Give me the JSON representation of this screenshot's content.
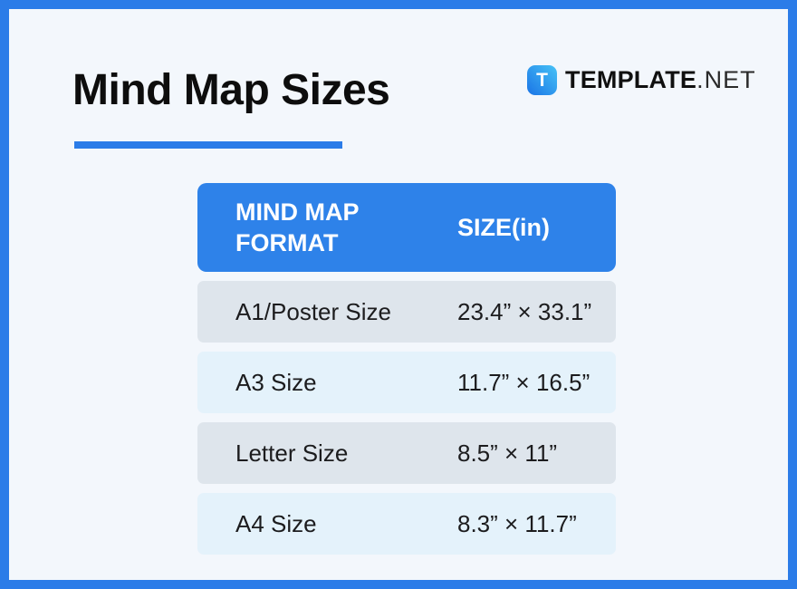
{
  "page": {
    "title": "Mind Map Sizes"
  },
  "logo": {
    "icon_letter": "T",
    "brand_bold": "TEMPLATE",
    "brand_light": ".NET"
  },
  "table": {
    "headers": {
      "format": "MIND MAP FORMAT",
      "size": "SIZE(in)"
    },
    "rows": [
      {
        "format": "A1/Poster Size",
        "size": "23.4” × 33.1”"
      },
      {
        "format": "A3 Size",
        "size": "11.7” × 16.5”"
      },
      {
        "format": "Letter Size",
        "size": "8.5” × 11”"
      },
      {
        "format": "A4 Size",
        "size": "8.3” × 11.7”"
      }
    ]
  },
  "colors": {
    "accent_blue": "#2b7ce8",
    "header_blue": "#2e82e9",
    "row_odd": "#dee5ec",
    "row_even": "#e4f2fb",
    "background": "#f3f7fc",
    "logo_gradient_start": "#47c2f6",
    "logo_gradient_end": "#1a74e6"
  }
}
